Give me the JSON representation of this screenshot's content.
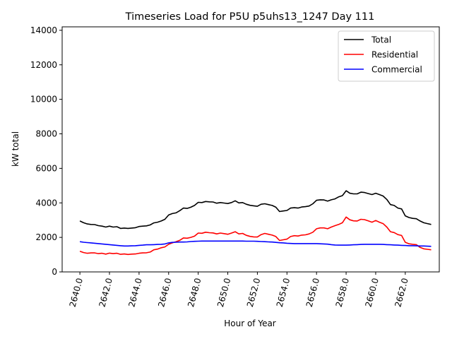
{
  "chart_data": {
    "type": "line",
    "title": "Timeseries Load for P5U p5uhs13_1247  Day 111",
    "xlabel": "Hour of Year",
    "ylabel": "kW total",
    "xlim": [
      2638.8,
      2664.3
    ],
    "ylim": [
      0,
      14200
    ],
    "x_ticks": [
      2640,
      2642,
      2644,
      2646,
      2648,
      2650,
      2652,
      2654,
      2656,
      2658,
      2660,
      2662
    ],
    "x_tick_labels": [
      "2640.0",
      "2642.0",
      "2644.0",
      "2646.0",
      "2648.0",
      "2650.0",
      "2652.0",
      "2654.0",
      "2656.0",
      "2658.0",
      "2660.0",
      "2662.0"
    ],
    "y_ticks": [
      0,
      2000,
      4000,
      6000,
      8000,
      10000,
      12000,
      14000
    ],
    "y_tick_labels": [
      "0",
      "2000",
      "4000",
      "6000",
      "8000",
      "10000",
      "12000",
      "14000"
    ],
    "legend_position": "top-right",
    "x_start": 2640,
    "x_step": 0.25,
    "series": [
      {
        "name": "Total",
        "color": "#000000",
        "values": [
          2950,
          2850,
          2780,
          2750,
          2740,
          2680,
          2650,
          2600,
          2650,
          2600,
          2620,
          2520,
          2540,
          2520,
          2540,
          2560,
          2630,
          2650,
          2670,
          2720,
          2840,
          2880,
          2950,
          3050,
          3300,
          3380,
          3420,
          3550,
          3700,
          3680,
          3750,
          3850,
          4030,
          4020,
          4080,
          4060,
          4050,
          3980,
          4020,
          3990,
          3960,
          4020,
          4120,
          4000,
          4020,
          3920,
          3860,
          3830,
          3800,
          3920,
          3950,
          3900,
          3850,
          3750,
          3500,
          3530,
          3560,
          3700,
          3720,
          3700,
          3760,
          3780,
          3820,
          3950,
          4150,
          4180,
          4170,
          4100,
          4180,
          4230,
          4350,
          4420,
          4700,
          4560,
          4520,
          4520,
          4620,
          4600,
          4540,
          4480,
          4560,
          4480,
          4400,
          4200,
          3900,
          3850,
          3700,
          3650,
          3250,
          3150,
          3100,
          3080,
          2950,
          2850,
          2800,
          2750
        ]
      },
      {
        "name": "Residential",
        "color": "#ff0000",
        "values": [
          1200,
          1120,
          1080,
          1100,
          1100,
          1060,
          1080,
          1030,
          1090,
          1060,
          1080,
          1020,
          1040,
          1010,
          1030,
          1040,
          1080,
          1100,
          1110,
          1150,
          1280,
          1320,
          1400,
          1450,
          1600,
          1680,
          1750,
          1830,
          1970,
          1950,
          2000,
          2070,
          2250,
          2240,
          2300,
          2270,
          2260,
          2200,
          2250,
          2220,
          2180,
          2250,
          2330,
          2200,
          2230,
          2120,
          2060,
          2030,
          2020,
          2160,
          2230,
          2180,
          2130,
          2050,
          1820,
          1860,
          1900,
          2050,
          2100,
          2080,
          2130,
          2150,
          2200,
          2300,
          2500,
          2550,
          2550,
          2500,
          2600,
          2680,
          2750,
          2850,
          3180,
          3020,
          2960,
          2950,
          3050,
          3030,
          2960,
          2880,
          2980,
          2880,
          2800,
          2600,
          2330,
          2280,
          2160,
          2110,
          1720,
          1630,
          1600,
          1580,
          1420,
          1340,
          1310,
          1280
        ]
      },
      {
        "name": "Commercial",
        "color": "#0000ff",
        "values": [
          1750,
          1720,
          1700,
          1680,
          1660,
          1640,
          1620,
          1600,
          1580,
          1560,
          1540,
          1520,
          1500,
          1500,
          1510,
          1520,
          1540,
          1550,
          1570,
          1570,
          1580,
          1590,
          1600,
          1620,
          1680,
          1710,
          1720,
          1730,
          1730,
          1740,
          1760,
          1770,
          1780,
          1790,
          1790,
          1790,
          1790,
          1790,
          1790,
          1790,
          1790,
          1790,
          1790,
          1790,
          1790,
          1780,
          1780,
          1780,
          1770,
          1760,
          1750,
          1740,
          1730,
          1710,
          1690,
          1680,
          1660,
          1650,
          1640,
          1640,
          1640,
          1640,
          1640,
          1640,
          1640,
          1630,
          1620,
          1610,
          1580,
          1560,
          1550,
          1550,
          1550,
          1560,
          1570,
          1580,
          1590,
          1600,
          1600,
          1600,
          1600,
          1600,
          1590,
          1580,
          1570,
          1560,
          1550,
          1540,
          1530,
          1520,
          1520,
          1510,
          1500,
          1500,
          1490,
          1480
        ]
      }
    ]
  }
}
